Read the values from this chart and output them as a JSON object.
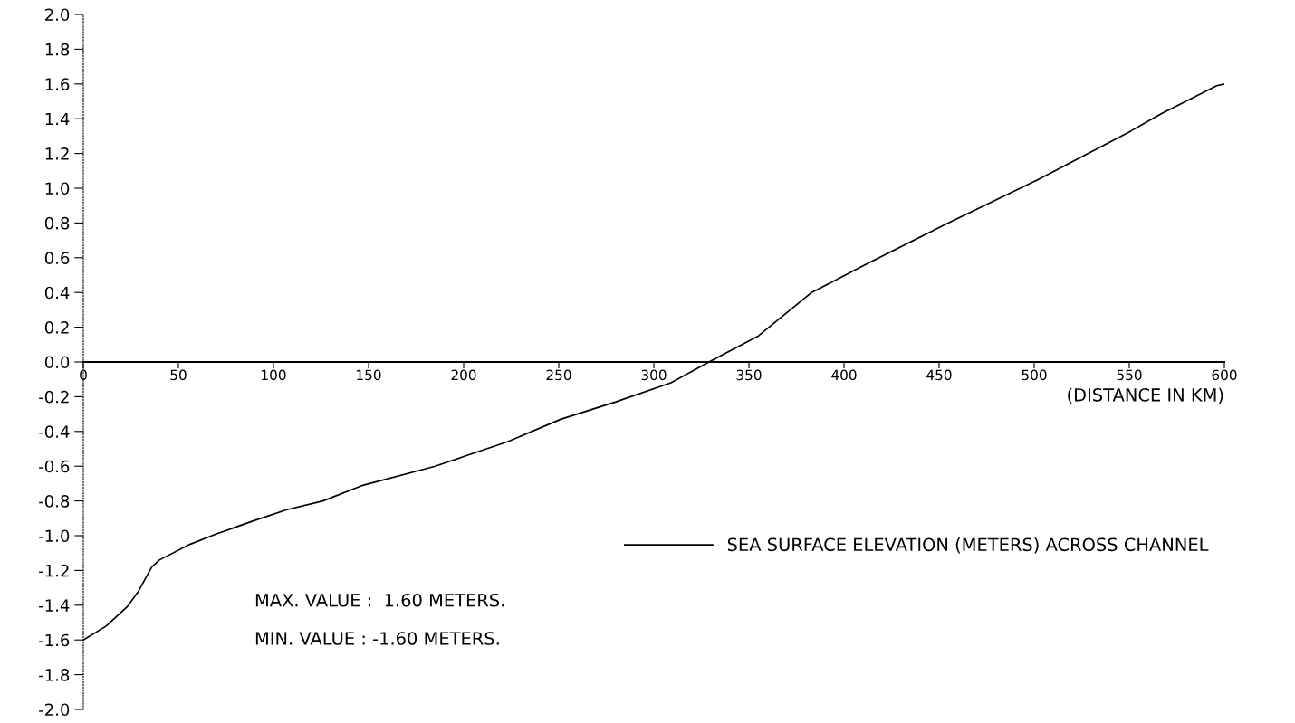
{
  "chart_data": {
    "type": "line",
    "x": [
      0,
      12,
      23,
      29,
      36,
      40,
      56,
      70,
      88,
      107,
      126,
      147,
      185,
      223,
      251,
      280,
      309,
      329,
      355,
      383,
      413,
      453,
      502,
      551,
      567,
      596,
      600
    ],
    "series": [
      {
        "name": "SEA SURFACE ELEVATION (METERS) ACROSS CHANNEL",
        "color": "#000000",
        "values": [
          -1.6,
          -1.52,
          -1.41,
          -1.32,
          -1.18,
          -1.14,
          -1.05,
          -0.99,
          -0.92,
          -0.85,
          -0.8,
          -0.71,
          -0.6,
          -0.46,
          -0.33,
          -0.23,
          -0.12,
          0,
          0.15,
          0.4,
          0.57,
          0.79,
          1.05,
          1.33,
          1.43,
          1.59,
          1.6
        ]
      }
    ],
    "xlabel": "(DISTANCE IN KM)",
    "xlim": [
      0,
      600
    ],
    "xticks": [
      0,
      50,
      100,
      150,
      200,
      250,
      300,
      350,
      400,
      450,
      500,
      550,
      600
    ],
    "ylim": [
      -2.0,
      2.0
    ],
    "yticks": [
      {
        "value": 2.0,
        "label": "2.0"
      },
      {
        "value": 1.8,
        "label": "1.8"
      },
      {
        "value": 1.6,
        "label": "1.6"
      },
      {
        "value": 1.4,
        "label": "1.4"
      },
      {
        "value": 1.2,
        "label": "1.2"
      },
      {
        "value": 1.0,
        "label": "1.0"
      },
      {
        "value": 0.8,
        "label": "0.8"
      },
      {
        "value": 0.6,
        "label": "0.6"
      },
      {
        "value": 0.4,
        "label": "0.4"
      },
      {
        "value": 0.2,
        "label": "0.2"
      },
      {
        "value": 0.0,
        "label": "0.0"
      },
      {
        "value": -0.2,
        "label": "-0.2"
      },
      {
        "value": -0.4,
        "label": "-0.4"
      },
      {
        "value": -0.6,
        "label": "-0.6"
      },
      {
        "value": -0.8,
        "label": "-0.8"
      },
      {
        "value": -1.0,
        "label": "-1.0"
      },
      {
        "value": -1.2,
        "label": "-1.2"
      },
      {
        "value": -1.4,
        "label": "-1.4"
      },
      {
        "value": -1.6,
        "label": "-1.6"
      },
      {
        "value": -1.8,
        "label": "-1.8"
      },
      {
        "value": -2.0,
        "label": "-2.0"
      }
    ],
    "annotations": [
      "MAX. VALUE :  1.60 METERS.",
      "MIN. VALUE : -1.60 METERS."
    ],
    "legend": "bottom right",
    "grid": false,
    "marker": "none",
    "line_style": "solid"
  }
}
